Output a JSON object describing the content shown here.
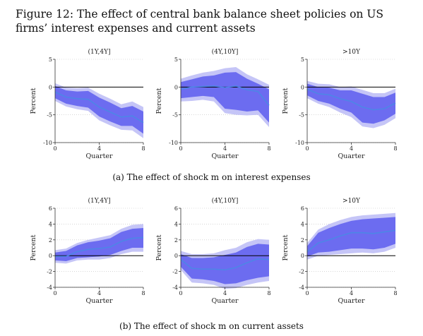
{
  "figure_title": "Figure 12: The effect of central bank balance sheet policies on US firms’ interest expenses and current assets",
  "captions": {
    "a": "(a) The effect of shock m on interest expenses",
    "b": "(b) The effect of shock m on current assets"
  },
  "chart_data": [
    {
      "type": "line",
      "panel": "a",
      "title": "(1Y,4Y]",
      "xlabel": "Quarter",
      "ylabel": "Percent",
      "xlim": [
        0,
        8
      ],
      "ylim": [
        -10,
        5
      ],
      "yticks": [
        -10,
        -5,
        0,
        5
      ],
      "xticks": [
        0,
        4,
        8
      ],
      "x": [
        0,
        1,
        2,
        3,
        4,
        5,
        6,
        7,
        8
      ],
      "estimate": [
        -0.9,
        -1.8,
        -2.1,
        -2.2,
        -3.6,
        -4.5,
        -5.4,
        -5.2,
        -6.4
      ],
      "ci68_lower": [
        -2.0,
        -3.0,
        -3.4,
        -3.7,
        -5.3,
        -6.2,
        -7.0,
        -7.0,
        -8.4
      ],
      "ci68_upper": [
        0.2,
        -0.6,
        -0.8,
        -0.7,
        -1.9,
        -2.8,
        -3.8,
        -3.4,
        -4.4
      ],
      "ci90_lower": [
        -2.5,
        -3.5,
        -4.0,
        -4.3,
        -6.0,
        -6.9,
        -7.7,
        -7.8,
        -9.2
      ],
      "ci90_upper": [
        0.7,
        -0.1,
        -0.2,
        -0.1,
        -1.2,
        -2.1,
        -3.1,
        -2.6,
        -3.6
      ]
    },
    {
      "type": "line",
      "panel": "a",
      "title": "(4Y,10Y]",
      "xlabel": "Quarter",
      "ylabel": "Percent",
      "xlim": [
        0,
        8
      ],
      "ylim": [
        -10,
        5
      ],
      "yticks": [
        -10,
        -5,
        0,
        5
      ],
      "xticks": [
        0,
        4,
        8
      ],
      "x": [
        0,
        1,
        2,
        3,
        4,
        5,
        6,
        7,
        8
      ],
      "estimate": [
        -0.4,
        0.0,
        0.1,
        0.2,
        -0.1,
        0.2,
        -0.5,
        -0.8,
        -3.3
      ],
      "ci68_lower": [
        -2.0,
        -1.8,
        -1.6,
        -1.8,
        -3.9,
        -4.1,
        -4.4,
        -4.2,
        -6.4
      ],
      "ci68_upper": [
        0.9,
        1.4,
        1.9,
        2.1,
        2.6,
        2.7,
        1.5,
        0.6,
        -0.4
      ],
      "ci90_lower": [
        -2.6,
        -2.5,
        -2.3,
        -2.6,
        -4.7,
        -5.0,
        -5.1,
        -5.0,
        -7.2
      ],
      "ci90_upper": [
        1.5,
        2.1,
        2.6,
        2.9,
        3.4,
        3.6,
        2.3,
        1.4,
        0.4
      ]
    },
    {
      "type": "line",
      "panel": "a",
      "title": ">10Y",
      "xlabel": "Quarter",
      "ylabel": "Percent",
      "xlim": [
        0,
        8
      ],
      "ylim": [
        -10,
        5
      ],
      "yticks": [
        -10,
        -5,
        0,
        5
      ],
      "xticks": [
        0,
        4,
        8
      ],
      "x": [
        0,
        1,
        2,
        3,
        4,
        5,
        6,
        7,
        8
      ],
      "estimate": [
        -0.4,
        -1.2,
        -1.4,
        -2.1,
        -2.6,
        -3.6,
        -4.1,
        -3.9,
        -2.9
      ],
      "ci68_lower": [
        -1.5,
        -2.5,
        -3.0,
        -3.9,
        -4.6,
        -6.4,
        -6.6,
        -6.0,
        -4.8
      ],
      "ci68_upper": [
        0.6,
        0.0,
        -0.1,
        -0.6,
        -0.6,
        -1.2,
        -1.8,
        -1.8,
        -1.0
      ],
      "ci90_lower": [
        -2.0,
        -3.0,
        -3.6,
        -4.6,
        -5.4,
        -7.1,
        -7.4,
        -6.8,
        -5.6
      ],
      "ci90_upper": [
        1.1,
        0.6,
        0.5,
        0.0,
        0.1,
        -0.5,
        -1.1,
        -1.1,
        -0.3
      ]
    },
    {
      "type": "line",
      "panel": "b",
      "title": "(1Y,4Y]",
      "xlabel": "Quarter",
      "ylabel": "Percent",
      "xlim": [
        0,
        8
      ],
      "ylim": [
        -4,
        6
      ],
      "yticks": [
        -4,
        -2,
        0,
        2,
        4,
        6
      ],
      "xticks": [
        0,
        4,
        8
      ],
      "x": [
        0,
        1,
        2,
        3,
        4,
        5,
        6,
        7,
        8
      ],
      "estimate": [
        -0.1,
        -0.1,
        0.5,
        0.8,
        0.9,
        1.1,
        1.8,
        2.2,
        2.3
      ],
      "ci68_lower": [
        -0.6,
        -0.7,
        -0.3,
        -0.2,
        -0.1,
        0.1,
        0.6,
        1.0,
        1.0
      ],
      "ci68_upper": [
        0.4,
        0.6,
        1.3,
        1.7,
        1.9,
        2.2,
        3.0,
        3.4,
        3.5
      ],
      "ci90_lower": [
        -0.9,
        -1.0,
        -0.6,
        -0.5,
        -0.5,
        -0.3,
        0.2,
        0.5,
        0.5
      ],
      "ci90_upper": [
        0.7,
        0.9,
        1.6,
        2.0,
        2.3,
        2.6,
        3.4,
        3.9,
        4.0
      ]
    },
    {
      "type": "line",
      "panel": "b",
      "title": "(4Y,10Y]",
      "xlabel": "Quarter",
      "ylabel": "Percent",
      "xlim": [
        0,
        8
      ],
      "ylim": [
        -4,
        6
      ],
      "yticks": [
        -4,
        -2,
        0,
        2,
        4,
        6
      ],
      "xticks": [
        0,
        4,
        8
      ],
      "x": [
        0,
        1,
        2,
        3,
        4,
        5,
        6,
        7,
        8
      ],
      "estimate": [
        -0.5,
        -1.6,
        -1.7,
        -1.7,
        -1.8,
        -1.5,
        -0.9,
        -0.4,
        -0.5
      ],
      "ci68_lower": [
        -1.4,
        -2.9,
        -3.0,
        -3.2,
        -3.6,
        -3.5,
        -3.1,
        -2.8,
        -2.6
      ],
      "ci68_upper": [
        0.2,
        -0.3,
        -0.3,
        -0.2,
        0.1,
        0.4,
        1.1,
        1.5,
        1.4
      ],
      "ci90_lower": [
        -1.8,
        -3.4,
        -3.5,
        -3.7,
        -4.2,
        -4.1,
        -3.7,
        -3.4,
        -3.2
      ],
      "ci90_upper": [
        0.6,
        0.2,
        0.2,
        0.3,
        0.7,
        1.0,
        1.7,
        2.1,
        2.0
      ]
    },
    {
      "type": "line",
      "panel": "b",
      "title": ">10Y",
      "xlabel": "Quarter",
      "ylabel": "Percent",
      "xlim": [
        0,
        8
      ],
      "ylim": [
        -4,
        6
      ],
      "yticks": [
        -4,
        -2,
        0,
        2,
        4,
        6
      ],
      "xticks": [
        0,
        4,
        8
      ],
      "x": [
        0,
        1,
        2,
        3,
        4,
        5,
        6,
        7,
        8
      ],
      "estimate": [
        0.5,
        1.6,
        2.0,
        2.5,
        2.9,
        2.9,
        2.8,
        3.0,
        3.2
      ],
      "ci68_lower": [
        -0.1,
        0.4,
        0.5,
        0.7,
        0.9,
        0.9,
        0.8,
        1.0,
        1.5
      ],
      "ci68_upper": [
        1.2,
        2.9,
        3.5,
        4.0,
        4.4,
        4.6,
        4.7,
        4.8,
        4.9
      ],
      "ci90_lower": [
        -0.5,
        0.0,
        0.1,
        0.2,
        0.3,
        0.4,
        0.3,
        0.5,
        1.0
      ],
      "ci90_upper": [
        1.6,
        3.3,
        4.0,
        4.5,
        4.9,
        5.1,
        5.2,
        5.3,
        5.4
      ]
    }
  ],
  "colors": {
    "estimate_line": "#4d86e6",
    "band_inner": "#6c6cf0",
    "band_outer": "#c5c5f7",
    "zero_line": "#000000",
    "grid": "#bfbfbf",
    "axis": "#333333"
  }
}
